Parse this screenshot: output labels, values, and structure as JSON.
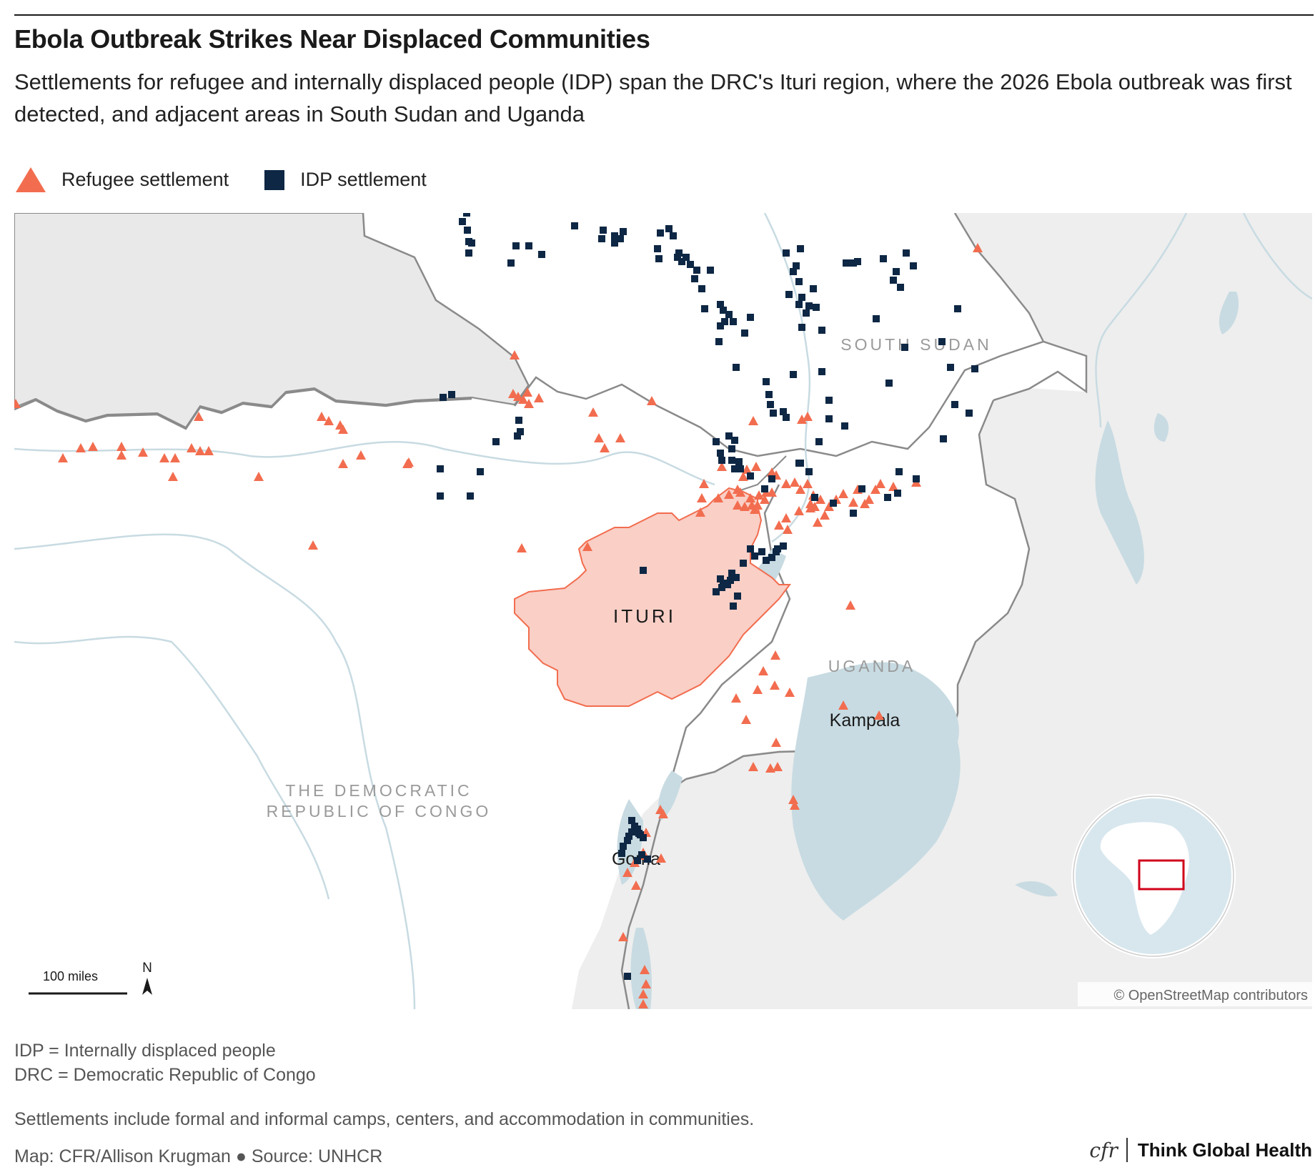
{
  "header": {
    "title": "Ebola Outbreak Strikes Near Displaced Communities",
    "subtitle": "Settlements for refugee and internally displaced people (IDP) span the DRC's Ituri region, where the 2026 Ebola outbreak was first detected, and adjacent areas in South Sudan and Uganda"
  },
  "legend": {
    "refugee_label": "Refugee settlement",
    "idp_label": "IDP settlement"
  },
  "colors": {
    "refugee": "#f26d4f",
    "idp": "#0d2744",
    "ituri_fill": "#f9cfc6",
    "water": "#c8dbe2",
    "land_outside": "#eeeeee",
    "border": "#888888"
  },
  "map": {
    "labels": {
      "south_sudan": "SOUTH SUDAN",
      "ituri": "ITURI",
      "uganda": "UGANDA",
      "kampala": "Kampala",
      "drc_line1": "THE DEMOCRATIC",
      "drc_line2": "REPUBLIC OF CONGO",
      "goma": "Goma"
    },
    "scale_label": "100 miles",
    "north_label": "N",
    "attribution": "© OpenStreetMap contributors"
  },
  "footer": {
    "note1": "IDP = Internally displaced people",
    "note2": "DRC = Democratic Republic of Congo",
    "note3": "Settlements include formal and informal camps, centers, and accommodation in communities.",
    "credit": "Map: CFR/Allison Krugman ● Source: UNHCR",
    "brand_mark": "cfr",
    "brand_name": "Think Global Health"
  }
}
